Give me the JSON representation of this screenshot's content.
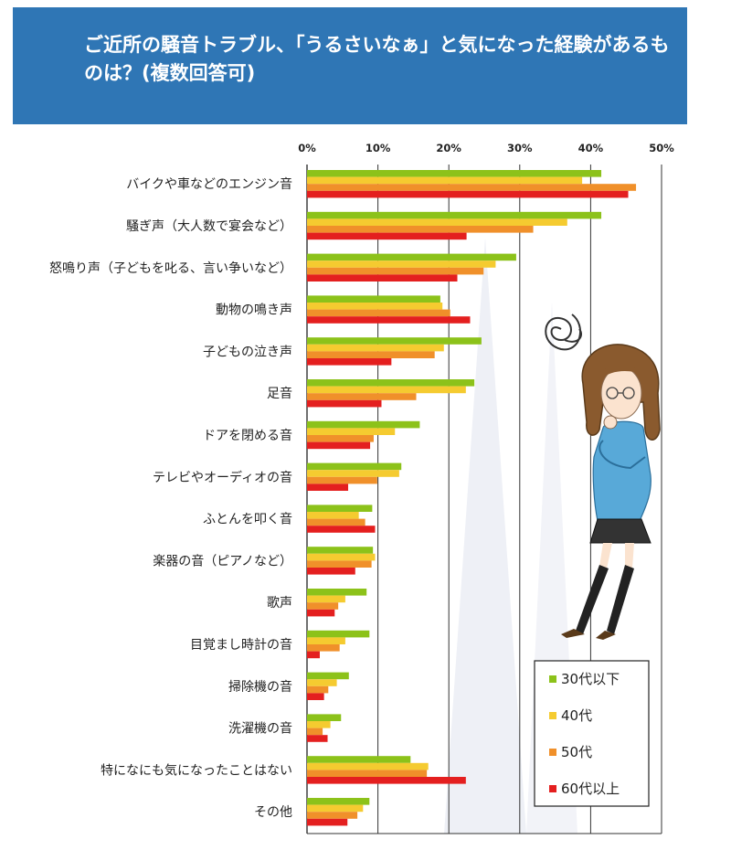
{
  "header": {
    "title": "ご近所の騒音トラブル、「うるさいなぁ」と気になった経験があるものは？(複数回答可)"
  },
  "colors": {
    "banner": "#2f76b5",
    "series": [
      "#8cc21a",
      "#f5cb30",
      "#f0902a",
      "#e41f1f"
    ]
  },
  "chart_data": {
    "type": "bar",
    "orientation": "horizontal",
    "title": "ご近所の騒音トラブル、「うるさいなぁ」と気になった経験があるものは？(複数回答可)",
    "xlabel": "",
    "ylabel": "",
    "xlim": [
      0,
      50
    ],
    "xticks": [
      "0%",
      "10%",
      "20%",
      "30%",
      "40%",
      "50%"
    ],
    "grid": true,
    "legend_position": "bottom-right",
    "categories": [
      "バイクや車などのエンジン音",
      "騒ぎ声（大人数で宴会など）",
      "怒鳴り声（子どもを叱る、言い争いなど）",
      "動物の鳴き声",
      "子どもの泣き声",
      "足音",
      "ドアを閉める音",
      "テレビやオーディオの音",
      "ふとんを叩く音",
      "楽器の音（ピアノなど）",
      "歌声",
      "目覚まし時計の音",
      "掃除機の音",
      "洗濯機の音",
      "特になにも気になったことはない",
      "その他"
    ],
    "series": [
      {
        "name": "30代以下",
        "values": [
          41.5,
          41.5,
          29.5,
          18.8,
          24.6,
          23.6,
          15.9,
          13.3,
          9.2,
          9.3,
          8.4,
          8.8,
          5.9,
          4.8,
          14.6,
          8.8
        ]
      },
      {
        "name": "40代",
        "values": [
          38.8,
          36.7,
          26.6,
          19.1,
          19.3,
          22.4,
          12.4,
          13.0,
          7.3,
          9.6,
          5.4,
          5.4,
          4.2,
          3.3,
          17.1,
          7.9
        ]
      },
      {
        "name": "50代",
        "values": [
          46.4,
          31.9,
          24.9,
          20.2,
          18.0,
          15.4,
          9.4,
          9.9,
          8.2,
          9.1,
          4.4,
          4.6,
          3.0,
          2.2,
          16.9,
          7.1
        ]
      },
      {
        "name": "60代以上",
        "values": [
          45.3,
          22.5,
          21.2,
          23.0,
          11.9,
          10.5,
          8.9,
          5.8,
          9.6,
          6.8,
          3.9,
          1.8,
          2.4,
          2.9,
          22.4,
          5.7
        ]
      }
    ]
  }
}
